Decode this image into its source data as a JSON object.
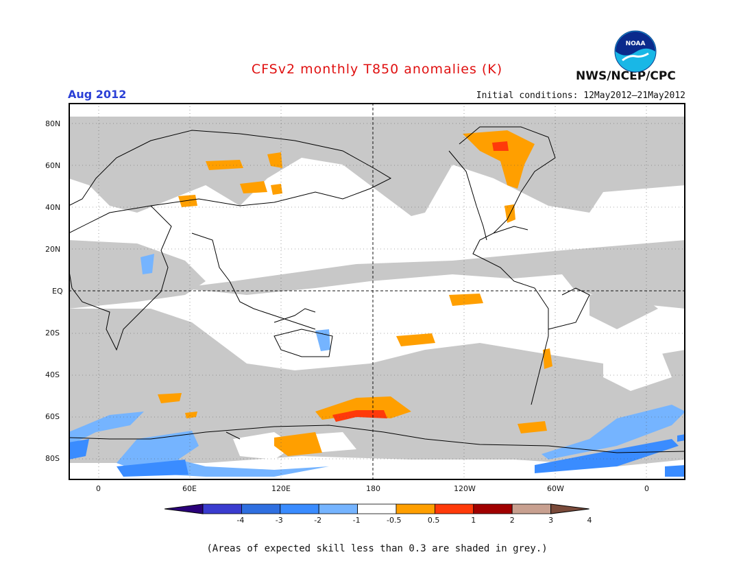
{
  "header": {
    "title": "CFSv2 monthly T850 anomalies (K)",
    "month": "Aug 2012",
    "initial_conditions": "Initial conditions: 12May2012–21May2012",
    "agency": "NWS/NCEP/CPC",
    "logo_text": "NOAA"
  },
  "map": {
    "lat_labels": [
      "80N",
      "60N",
      "40N",
      "20N",
      "EQ",
      "20S",
      "40S",
      "60S",
      "80S"
    ],
    "lon_labels": [
      "0",
      "60E",
      "120E",
      "180",
      "120W",
      "60W",
      "0"
    ],
    "colors": {
      "grey": "#c8c8c8",
      "orange": "#ff9f00",
      "red_orange": "#ff3a0a",
      "light_blue": "#75b4ff",
      "blue": "#3a8cff",
      "coast": "#000000"
    }
  },
  "colorbar": {
    "labels": [
      "-4",
      "-3",
      "-2",
      "-1",
      "-0.5",
      "0.5",
      "1",
      "2",
      "3",
      "4"
    ],
    "colors": [
      "#2a007a",
      "#3a3ccf",
      "#2f6fe0",
      "#3a8cff",
      "#75b4ff",
      "#ffffff",
      "#ff9f00",
      "#ff3a0a",
      "#a00000",
      "#c8a090",
      "#7a4a3a"
    ]
  },
  "footnote": "(Areas of expected skill less than 0.3 are shaded in grey.)"
}
